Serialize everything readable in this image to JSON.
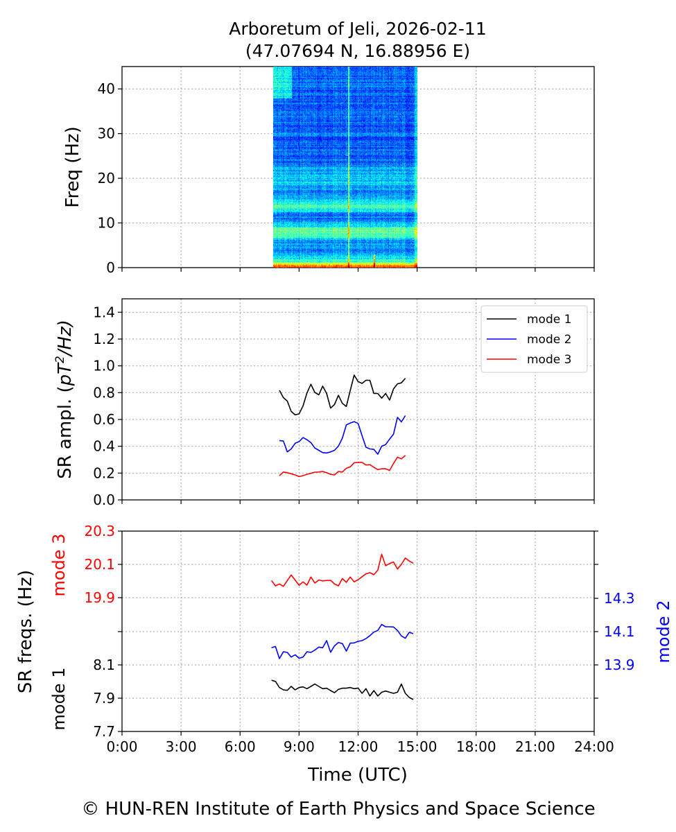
{
  "chart_data": [
    {
      "type": "heatmap",
      "title": "Arboretum of Jeli, 2026-02-11",
      "subtitle": "(47.07694 N, 16.88956 E)",
      "ylabel": "Freq (Hz)",
      "ylim": [
        0,
        45
      ],
      "yticks": [
        "0",
        "10",
        "20",
        "30",
        "40"
      ],
      "xlim_hours": [
        0,
        24
      ],
      "data_time_range_hours": [
        7.68,
        15.0
      ],
      "colormap": "jet",
      "features": {
        "bright_band_hz": [
          0,
          2
        ],
        "bands_hz": [
          8,
          14,
          20
        ],
        "vertical_spikes_hours": [
          11.5,
          12.8
        ]
      },
      "grid": true
    },
    {
      "type": "line",
      "ylabel": "SR ampl. (pT²/Hz)",
      "ylabel_main": "SR ampl. (",
      "ylabel_math": "pT",
      "ylabel_sup": "2",
      "ylabel_tail": "/Hz)",
      "ylim": [
        0,
        1.5
      ],
      "yticks": [
        "0.0",
        "0.2",
        "0.4",
        "0.6",
        "0.8",
        "1.0",
        "1.2",
        "1.4"
      ],
      "legend_position": "top-right",
      "x_start_hours": 8.0,
      "x_step_hours": 0.2,
      "series": [
        {
          "name": "mode 1",
          "color": "#000000",
          "values": [
            0.818,
            0.763,
            0.737,
            0.66,
            0.634,
            0.642,
            0.702,
            0.797,
            0.863,
            0.801,
            0.784,
            0.849,
            0.794,
            0.685,
            0.711,
            0.78,
            0.72,
            0.697,
            0.815,
            0.931,
            0.883,
            0.869,
            0.892,
            0.892,
            0.794,
            0.794,
            0.759,
            0.794,
            0.745,
            0.828,
            0.866,
            0.873,
            0.907
          ]
        },
        {
          "name": "mode 2",
          "color": "#0000ff",
          "values": [
            0.443,
            0.439,
            0.358,
            0.38,
            0.422,
            0.435,
            0.465,
            0.449,
            0.427,
            0.387,
            0.37,
            0.353,
            0.35,
            0.358,
            0.37,
            0.401,
            0.461,
            0.559,
            0.573,
            0.584,
            0.57,
            0.479,
            0.393,
            0.38,
            0.377,
            0.341,
            0.401,
            0.413,
            0.453,
            0.491,
            0.616,
            0.582,
            0.629
          ]
        },
        {
          "name": "mode 3",
          "color": "#ff0000",
          "values": [
            0.181,
            0.208,
            0.203,
            0.195,
            0.186,
            0.174,
            0.181,
            0.191,
            0.198,
            0.207,
            0.208,
            0.212,
            0.203,
            0.191,
            0.186,
            0.212,
            0.208,
            0.236,
            0.246,
            0.277,
            0.28,
            0.28,
            0.26,
            0.263,
            0.243,
            0.226,
            0.232,
            0.232,
            0.22,
            0.272,
            0.319,
            0.306,
            0.332
          ]
        }
      ],
      "grid": true
    },
    {
      "type": "line",
      "ylabel": "SR freqs. (Hz)",
      "left_mode3_label": "mode 3",
      "left_mode1_label": "mode 1",
      "right_label": "mode 2",
      "yticks_mode3": [
        "19.9",
        "20.1",
        "20.3"
      ],
      "yticks_mode1": [
        "7.7",
        "7.9",
        "8.1"
      ],
      "yticks_mode2": [
        "13.9",
        "14.1",
        "14.3"
      ],
      "x_start_hours": 7.6,
      "x_step_hours": 0.2,
      "xlabel": "Time (UTC)",
      "xticks": [
        "0:00",
        "3:00",
        "6:00",
        "9:00",
        "12:00",
        "15:00",
        "18:00",
        "21:00",
        "24:00"
      ],
      "series": [
        {
          "name": "mode 3",
          "color": "#ff0000",
          "values": [
            20.003,
            19.971,
            19.982,
            19.968,
            20.003,
            20.036,
            20.006,
            19.974,
            19.995,
            19.975,
            20.024,
            19.988,
            20.006,
            20.001,
            20.003,
            20.004,
            19.983,
            19.971,
            20.015,
            19.992,
            20.024,
            19.995,
            20.008,
            20.026,
            20.043,
            20.05,
            20.038,
            20.065,
            20.161,
            20.092,
            20.105,
            20.114,
            20.072,
            20.1,
            20.138,
            20.12,
            20.107
          ]
        },
        {
          "name": "mode 2",
          "color": "#0000ff",
          "values": [
            14.003,
            14.011,
            13.938,
            13.979,
            13.975,
            13.947,
            13.961,
            13.94,
            13.947,
            13.979,
            13.975,
            13.989,
            14.007,
            14.003,
            14.046,
            13.976,
            14.014,
            14.035,
            14.028,
            13.983,
            14.031,
            14.032,
            14.042,
            14.046,
            14.058,
            14.076,
            14.097,
            14.107,
            14.143,
            14.129,
            14.129,
            14.128,
            14.107,
            14.074,
            14.06,
            14.096,
            14.088
          ]
        },
        {
          "name": "mode 1",
          "color": "#000000",
          "values": [
            8.008,
            8.001,
            7.964,
            7.95,
            7.947,
            7.971,
            7.95,
            7.964,
            7.968,
            7.957,
            7.971,
            7.985,
            7.971,
            7.957,
            7.96,
            7.946,
            7.933,
            7.953,
            7.96,
            7.96,
            7.964,
            7.957,
            7.961,
            7.929,
            7.957,
            7.913,
            7.946,
            7.913,
            7.936,
            7.943,
            7.936,
            7.929,
            7.936,
            7.985,
            7.929,
            7.904,
            7.892
          ]
        }
      ],
      "grid": true
    }
  ],
  "footer": "© HUN-REN Institute of Earth Physics and Space Science"
}
